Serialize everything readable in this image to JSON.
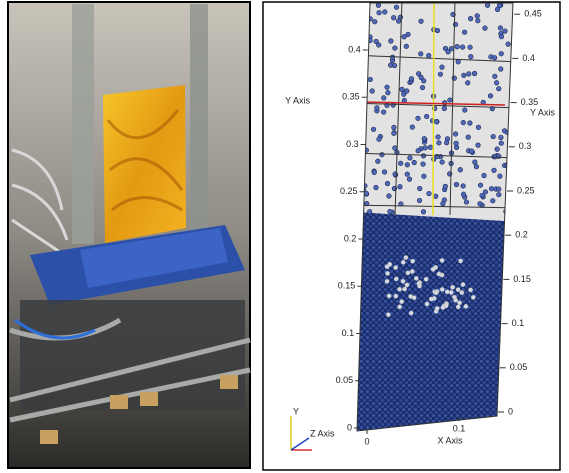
{
  "left_axis_title": "Y Axis",
  "left_axis_ticks": [
    0.4,
    0.35,
    0.3,
    0.25,
    0.2,
    0.15,
    0.1,
    0.05,
    0
  ],
  "right_axis_title": "Y Axis",
  "right_axis_ticks": [
    0.45,
    0.4,
    0.35,
    0.3,
    0.25,
    0.2,
    0.15,
    0.1,
    0.05,
    0
  ],
  "x_axis_title": "X Axis",
  "x_axis_ticks": [
    0,
    0.1
  ],
  "triad": {
    "y": "Y",
    "z": "Z Axis"
  }
}
